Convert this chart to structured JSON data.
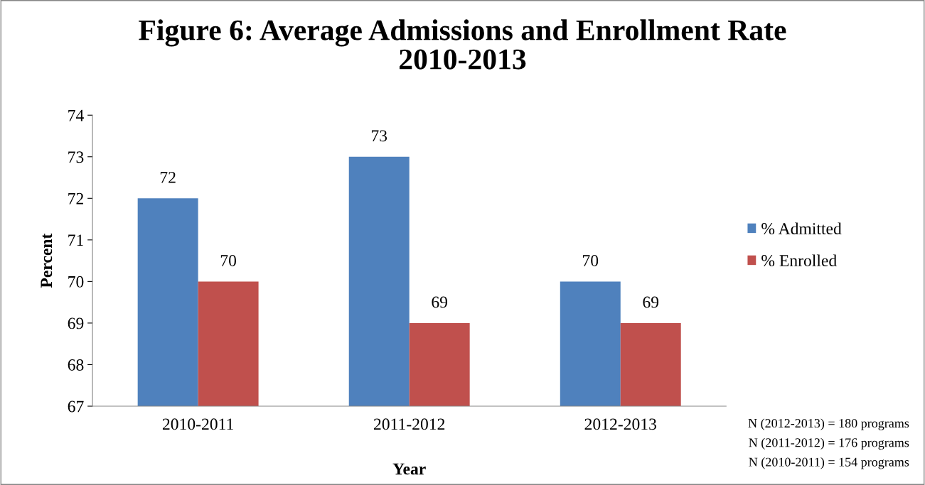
{
  "chart_data": {
    "type": "bar",
    "title": "Figure 6: Average Admissions and Enrollment Rate\n2010-2013",
    "xlabel": "Year",
    "ylabel": "Percent",
    "categories": [
      "2010-2011",
      "2011-2012",
      "2012-2013"
    ],
    "series": [
      {
        "name": "% Admitted",
        "color": "#4f81bd",
        "values": [
          72,
          73,
          70
        ]
      },
      {
        "name": "% Enrolled",
        "color": "#c0504d",
        "values": [
          70,
          69,
          69
        ]
      }
    ],
    "ylim": [
      67,
      74
    ],
    "yticks": [
      67,
      68,
      69,
      70,
      71,
      72,
      73,
      74
    ],
    "data_labels": true,
    "grid": false,
    "legend": "right",
    "annotations": [
      "N (2012-2013) = 180 programs",
      "N (2011-2012) = 176 programs",
      "N (2010-2011) = 154 programs"
    ]
  }
}
